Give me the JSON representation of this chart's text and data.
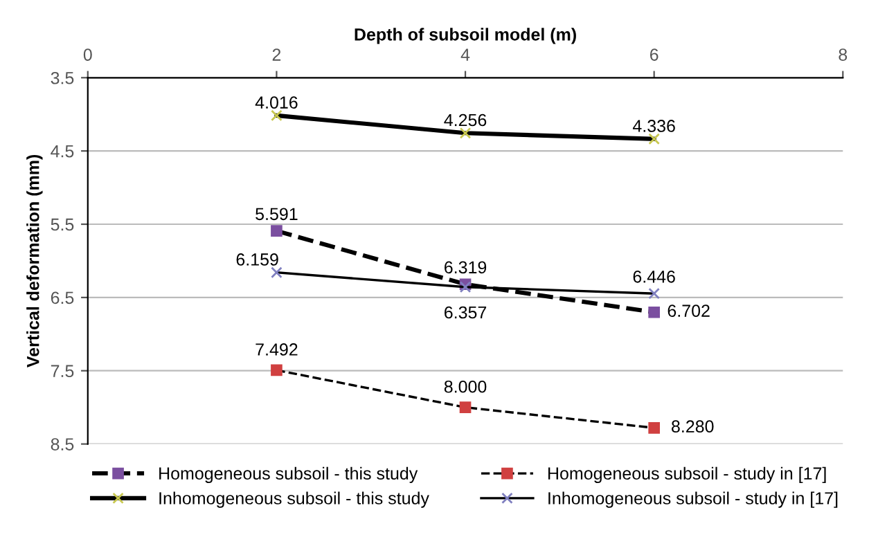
{
  "chart_data": {
    "type": "line",
    "xlabel": "Depth of subsoil model (m)",
    "ylabel": "Vertical deformation (mm)",
    "xlim": [
      0,
      8
    ],
    "xticks": [
      0,
      2,
      4,
      6,
      8
    ],
    "ylim": [
      8.5,
      3.5
    ],
    "yticks": [
      3.5,
      4.5,
      5.5,
      6.5,
      7.5,
      8.5
    ],
    "x": [
      2,
      4,
      6
    ],
    "grid": "y",
    "legend": "bottom",
    "series": [
      {
        "name": "Homogeneous subsoil - this study",
        "color": "#7b4fa0",
        "values": [
          5.591,
          6.319,
          6.702
        ],
        "value_labels": [
          "5.591",
          "6.319",
          "6.702"
        ],
        "line_style": "dashed",
        "marker": "square"
      },
      {
        "name": "Inhomogeneous subsoil - this study",
        "color": "#c8c850",
        "values": [
          4.016,
          4.256,
          4.336
        ],
        "value_labels": [
          "4.016",
          "4.256",
          "4.336"
        ],
        "line_style": "solid",
        "marker": "cross"
      },
      {
        "name": "Homogeneous subsoil - study in [17]",
        "color": "#d04040",
        "values": [
          7.492,
          8.0,
          8.28
        ],
        "value_labels": [
          "7.492",
          "8.000",
          "8.280"
        ],
        "line_style": "dashed",
        "marker": "square"
      },
      {
        "name": "Inhomogeneous subsoil - study in [17]",
        "color": "#8080c0",
        "values": [
          6.159,
          6.357,
          6.446
        ],
        "value_labels": [
          "6.159",
          "6.357",
          "6.446"
        ],
        "line_style": "solid",
        "marker": "cross"
      }
    ]
  }
}
